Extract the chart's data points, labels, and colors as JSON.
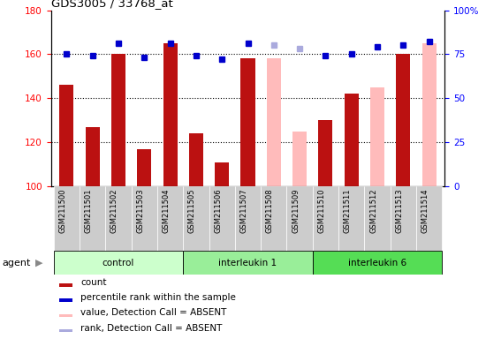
{
  "title": "GDS3005 / 33768_at",
  "samples": [
    "GSM211500",
    "GSM211501",
    "GSM211502",
    "GSM211503",
    "GSM211504",
    "GSM211505",
    "GSM211506",
    "GSM211507",
    "GSM211508",
    "GSM211509",
    "GSM211510",
    "GSM211511",
    "GSM211512",
    "GSM211513",
    "GSM211514"
  ],
  "bar_values": [
    146,
    127,
    160,
    117,
    165,
    124,
    111,
    158,
    158,
    125,
    130,
    142,
    145,
    160,
    165
  ],
  "bar_absent": [
    false,
    false,
    false,
    false,
    false,
    false,
    false,
    false,
    true,
    true,
    false,
    false,
    true,
    false,
    true
  ],
  "rank_values": [
    75,
    74,
    81,
    73,
    81,
    74,
    72,
    81,
    80,
    78,
    74,
    75,
    79,
    80,
    82
  ],
  "rank_absent": [
    false,
    false,
    false,
    false,
    false,
    false,
    false,
    false,
    true,
    true,
    false,
    false,
    false,
    false,
    false
  ],
  "groups": [
    {
      "label": "control",
      "start": 0,
      "end": 4,
      "color": "#ccffcc"
    },
    {
      "label": "interleukin 1",
      "start": 5,
      "end": 9,
      "color": "#99ee99"
    },
    {
      "label": "interleukin 6",
      "start": 10,
      "end": 14,
      "color": "#55dd55"
    }
  ],
  "ylim_left": [
    100,
    180
  ],
  "ylim_right": [
    0,
    100
  ],
  "yticks_left": [
    100,
    120,
    140,
    160,
    180
  ],
  "yticks_right": [
    0,
    25,
    50,
    75,
    100
  ],
  "yticklabels_right": [
    "0",
    "25",
    "50",
    "75",
    "100%"
  ],
  "bar_color_present": "#bb1111",
  "bar_color_absent": "#ffbbbb",
  "dot_color_present": "#0000cc",
  "dot_color_absent": "#aaaadd",
  "xtick_bg": "#cccccc",
  "agent_label": "agent",
  "agent_arrow": "▶",
  "legend_items": [
    {
      "color": "#bb1111",
      "label": "count"
    },
    {
      "color": "#0000cc",
      "label": "percentile rank within the sample"
    },
    {
      "color": "#ffbbbb",
      "label": "value, Detection Call = ABSENT"
    },
    {
      "color": "#aaaadd",
      "label": "rank, Detection Call = ABSENT"
    }
  ]
}
